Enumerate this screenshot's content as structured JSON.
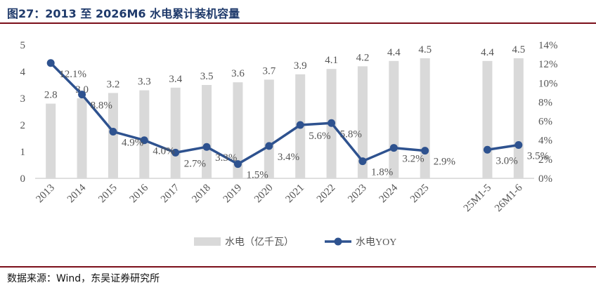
{
  "title": "图27：2013 至 2026M6 水电累计装机容量",
  "source": "数据来源：Wind，东吴证券研究所",
  "colors": {
    "bar": "#d9d9d9",
    "line": "#2e528f",
    "rule": "#7b0f1a",
    "title": "#1f3a6b"
  },
  "chart_data": {
    "type": "bar",
    "categories": [
      "2013",
      "2014",
      "2015",
      "2016",
      "2017",
      "2018",
      "2019",
      "2020",
      "2021",
      "2022",
      "2023",
      "2024",
      "2025",
      "",
      "25M1-5",
      "26M1-6"
    ],
    "series": [
      {
        "name": "水电（亿千瓦）",
        "type": "bar",
        "axis": "left",
        "values": [
          2.8,
          3.0,
          3.2,
          3.3,
          3.4,
          3.5,
          3.6,
          3.7,
          3.9,
          4.1,
          4.2,
          4.4,
          4.5,
          null,
          4.4,
          4.5
        ],
        "labels": [
          "2.8",
          "3.0",
          "3.2",
          "3.3",
          "3.4",
          "3.5",
          "3.6",
          "3.7",
          "3.9",
          "4.1",
          "4.2",
          "4.4",
          "4.5",
          "",
          "4.4",
          "4.5"
        ]
      },
      {
        "name": "水电YOY",
        "type": "line",
        "axis": "right",
        "values": [
          12.1,
          8.8,
          4.9,
          4.0,
          2.7,
          3.3,
          1.5,
          3.4,
          5.6,
          5.8,
          1.8,
          3.2,
          2.9,
          null,
          3.0,
          3.5
        ],
        "labels": [
          "12.1%",
          "8.8%",
          "4.9%",
          "4.0%",
          "2.7%",
          "3.3%",
          "1.5%",
          "3.4%",
          "5.6%",
          "5.8%",
          "1.8%",
          "3.2%",
          "2.9%",
          "",
          "3.0%",
          "3.5%"
        ]
      }
    ],
    "y_left": {
      "min": 0,
      "max": 5,
      "ticks": [
        "0",
        "1",
        "2",
        "3",
        "4",
        "5"
      ]
    },
    "y_right": {
      "min": 0,
      "max": 14,
      "ticks": [
        "0%",
        "2%",
        "4%",
        "6%",
        "8%",
        "10%",
        "12%",
        "14%"
      ]
    },
    "grid": false,
    "legend": "bottom"
  }
}
